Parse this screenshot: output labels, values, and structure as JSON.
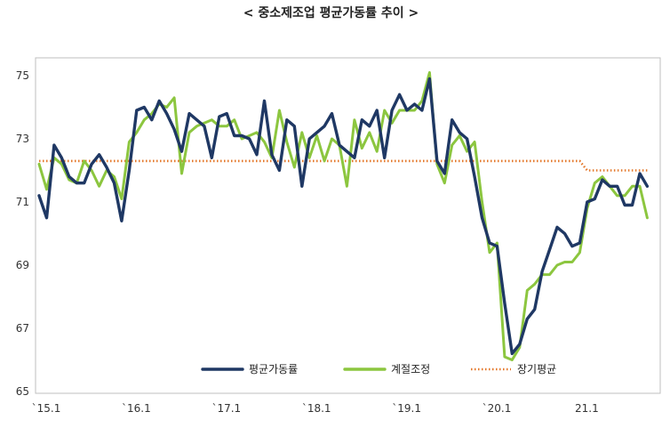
{
  "chart_data": {
    "type": "line",
    "title": "< 중소제조업  평균가동률  추이 >",
    "xlabel": "",
    "ylabel": "",
    "ylim": [
      65,
      76
    ],
    "yticks": [
      65,
      67,
      69,
      71,
      73,
      75
    ],
    "x_start": "2015-01",
    "x_end": "2021-11",
    "xticks": [
      {
        "x": 0,
        "label": "`15.1"
      },
      {
        "x": 12,
        "label": "`16.1"
      },
      {
        "x": 24,
        "label": "`17.1"
      },
      {
        "x": 36,
        "label": "`18.1"
      },
      {
        "x": 48,
        "label": "`19.1"
      },
      {
        "x": 60,
        "label": "`20.1"
      },
      {
        "x": 72,
        "label": "21.1"
      }
    ],
    "grid": false,
    "legend": "bottom-center",
    "series": [
      {
        "name": "평균가동률",
        "color": "#1f3864",
        "style": "solid",
        "values": [
          71.2,
          70.5,
          72.8,
          72.4,
          71.8,
          71.6,
          71.6,
          72.2,
          72.5,
          72.1,
          71.6,
          70.4,
          72.0,
          73.9,
          74.0,
          73.6,
          74.2,
          73.8,
          73.3,
          72.6,
          73.8,
          73.6,
          73.4,
          72.4,
          73.7,
          73.8,
          73.1,
          73.1,
          73.0,
          72.5,
          74.2,
          72.5,
          72.0,
          73.6,
          73.4,
          71.5,
          73.0,
          73.2,
          73.4,
          73.8,
          72.8,
          72.6,
          72.4,
          73.6,
          73.4,
          73.9,
          72.4,
          73.9,
          74.4,
          73.9,
          74.1,
          73.9,
          74.9,
          72.3,
          71.9,
          73.6,
          73.2,
          73.0,
          71.8,
          70.5,
          69.7,
          69.6,
          67.8,
          66.2,
          66.5,
          67.3,
          67.6,
          68.8,
          69.5,
          70.2,
          70.0,
          69.6,
          69.7,
          71.0,
          71.1,
          71.7,
          71.5,
          71.5,
          70.9,
          70.9,
          71.9,
          71.5
        ]
      },
      {
        "name": "계절조정",
        "color": "#8cc63f",
        "style": "solid",
        "values": [
          72.2,
          71.4,
          72.4,
          72.2,
          71.7,
          71.6,
          72.3,
          72.0,
          71.5,
          72.0,
          71.8,
          71.1,
          72.9,
          73.2,
          73.6,
          73.8,
          74.1,
          74.0,
          74.3,
          71.9,
          73.2,
          73.4,
          73.5,
          73.6,
          73.4,
          73.4,
          73.6,
          73.0,
          73.1,
          73.2,
          72.9,
          72.4,
          73.9,
          72.9,
          72.1,
          73.2,
          72.4,
          73.1,
          72.3,
          73.0,
          72.8,
          71.5,
          73.6,
          72.7,
          73.2,
          72.6,
          73.9,
          73.5,
          73.9,
          73.9,
          73.9,
          74.2,
          75.1,
          72.2,
          71.6,
          72.8,
          73.1,
          72.6,
          72.9,
          71.0,
          69.4,
          69.7,
          66.1,
          66.0,
          66.4,
          68.2,
          68.4,
          68.7,
          68.7,
          69.0,
          69.1,
          69.1,
          69.4,
          70.8,
          71.6,
          71.8,
          71.5,
          71.2,
          71.2,
          71.5,
          71.5,
          70.5
        ]
      },
      {
        "name": "장기평균",
        "color": "#e4782b",
        "style": "dotted",
        "values": [
          72.3,
          72.3,
          72.3,
          72.3,
          72.3,
          72.3,
          72.3,
          72.3,
          72.3,
          72.3,
          72.3,
          72.3,
          72.3,
          72.3,
          72.3,
          72.3,
          72.3,
          72.3,
          72.3,
          72.3,
          72.3,
          72.3,
          72.3,
          72.3,
          72.3,
          72.3,
          72.3,
          72.3,
          72.3,
          72.3,
          72.3,
          72.3,
          72.3,
          72.3,
          72.3,
          72.3,
          72.3,
          72.3,
          72.3,
          72.3,
          72.3,
          72.3,
          72.3,
          72.3,
          72.3,
          72.3,
          72.3,
          72.3,
          72.3,
          72.3,
          72.3,
          72.3,
          72.3,
          72.3,
          72.3,
          72.3,
          72.3,
          72.3,
          72.3,
          72.3,
          72.3,
          72.3,
          72.3,
          72.3,
          72.3,
          72.3,
          72.3,
          72.3,
          72.3,
          72.3,
          72.3,
          72.3,
          72.3,
          72.0,
          72.0,
          72.0,
          72.0,
          72.0,
          72.0,
          72.0,
          72.0,
          72.0
        ]
      }
    ]
  }
}
